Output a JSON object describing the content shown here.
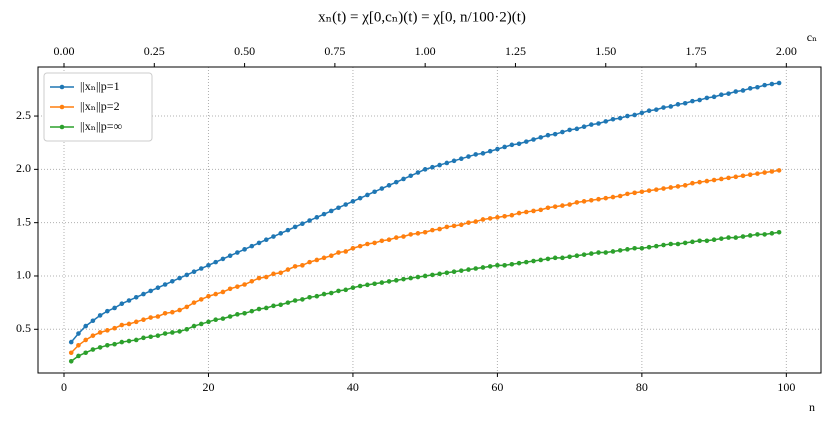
{
  "chart_data": {
    "type": "line",
    "title": "xₙ(t) = χ[0,cₙ)(t) = χ[0, n/100·2)(t)",
    "xlabel": "n",
    "x2label": "cₙ",
    "x": [
      1,
      2,
      3,
      4,
      5,
      6,
      7,
      8,
      9,
      10,
      11,
      12,
      13,
      14,
      15,
      16,
      17,
      18,
      19,
      20,
      21,
      22,
      23,
      24,
      25,
      26,
      27,
      28,
      29,
      30,
      31,
      32,
      33,
      34,
      35,
      36,
      37,
      38,
      39,
      40,
      41,
      42,
      43,
      44,
      45,
      46,
      47,
      48,
      49,
      50,
      51,
      52,
      53,
      54,
      55,
      56,
      57,
      58,
      59,
      60,
      61,
      62,
      63,
      64,
      65,
      66,
      67,
      68,
      69,
      70,
      71,
      72,
      73,
      74,
      75,
      76,
      77,
      78,
      79,
      80,
      81,
      82,
      83,
      84,
      85,
      86,
      87,
      88,
      89,
      90,
      91,
      92,
      93,
      94,
      95,
      96,
      97,
      98,
      99
    ],
    "series": [
      {
        "name": "||xₙ||p=1",
        "color": "#1f77b4",
        "values": [
          0.38,
          0.46,
          0.53,
          0.58,
          0.63,
          0.67,
          0.7,
          0.74,
          0.77,
          0.8,
          0.83,
          0.86,
          0.89,
          0.92,
          0.95,
          0.98,
          1.01,
          1.04,
          1.07,
          1.1,
          1.13,
          1.16,
          1.19,
          1.22,
          1.25,
          1.28,
          1.31,
          1.34,
          1.37,
          1.4,
          1.43,
          1.46,
          1.49,
          1.52,
          1.55,
          1.58,
          1.61,
          1.64,
          1.67,
          1.7,
          1.73,
          1.76,
          1.79,
          1.82,
          1.85,
          1.88,
          1.91,
          1.94,
          1.97,
          2.0,
          2.02,
          2.04,
          2.06,
          2.08,
          2.1,
          2.12,
          2.14,
          2.15,
          2.17,
          2.19,
          2.21,
          2.23,
          2.24,
          2.26,
          2.28,
          2.3,
          2.32,
          2.33,
          2.35,
          2.37,
          2.38,
          2.4,
          2.42,
          2.43,
          2.45,
          2.47,
          2.48,
          2.5,
          2.51,
          2.53,
          2.55,
          2.56,
          2.58,
          2.59,
          2.61,
          2.62,
          2.64,
          2.65,
          2.67,
          2.68,
          2.7,
          2.71,
          2.73,
          2.74,
          2.76,
          2.77,
          2.79,
          2.8,
          2.81
        ]
      },
      {
        "name": "||xₙ||p=2",
        "color": "#ff7f0e",
        "values": [
          0.28,
          0.35,
          0.4,
          0.44,
          0.47,
          0.49,
          0.51,
          0.54,
          0.55,
          0.57,
          0.59,
          0.61,
          0.62,
          0.65,
          0.66,
          0.68,
          0.71,
          0.75,
          0.78,
          0.81,
          0.83,
          0.85,
          0.88,
          0.9,
          0.92,
          0.95,
          0.98,
          0.99,
          1.02,
          1.03,
          1.06,
          1.09,
          1.1,
          1.13,
          1.15,
          1.17,
          1.19,
          1.22,
          1.23,
          1.26,
          1.28,
          1.3,
          1.31,
          1.33,
          1.34,
          1.36,
          1.37,
          1.39,
          1.4,
          1.41,
          1.43,
          1.44,
          1.46,
          1.47,
          1.48,
          1.5,
          1.51,
          1.53,
          1.54,
          1.55,
          1.56,
          1.57,
          1.59,
          1.6,
          1.61,
          1.62,
          1.64,
          1.65,
          1.66,
          1.67,
          1.69,
          1.7,
          1.71,
          1.72,
          1.73,
          1.74,
          1.75,
          1.77,
          1.78,
          1.79,
          1.8,
          1.81,
          1.82,
          1.83,
          1.84,
          1.85,
          1.87,
          1.88,
          1.89,
          1.9,
          1.91,
          1.92,
          1.93,
          1.94,
          1.95,
          1.96,
          1.97,
          1.98,
          1.99
        ]
      },
      {
        "name": "||xₙ||p=∞",
        "color": "#2ca02c",
        "values": [
          0.2,
          0.25,
          0.28,
          0.31,
          0.33,
          0.35,
          0.36,
          0.38,
          0.39,
          0.4,
          0.42,
          0.43,
          0.44,
          0.46,
          0.47,
          0.48,
          0.5,
          0.53,
          0.55,
          0.57,
          0.59,
          0.6,
          0.62,
          0.64,
          0.65,
          0.67,
          0.69,
          0.7,
          0.72,
          0.73,
          0.75,
          0.77,
          0.78,
          0.8,
          0.81,
          0.83,
          0.84,
          0.86,
          0.87,
          0.89,
          0.906,
          0.917,
          0.927,
          0.938,
          0.949,
          0.959,
          0.97,
          0.98,
          0.99,
          1.0,
          1.01,
          1.02,
          1.03,
          1.04,
          1.05,
          1.06,
          1.07,
          1.08,
          1.09,
          1.1,
          1.1,
          1.11,
          1.12,
          1.13,
          1.14,
          1.15,
          1.16,
          1.17,
          1.17,
          1.18,
          1.19,
          1.2,
          1.21,
          1.22,
          1.22,
          1.23,
          1.24,
          1.25,
          1.26,
          1.26,
          1.27,
          1.28,
          1.29,
          1.3,
          1.3,
          1.31,
          1.32,
          1.33,
          1.33,
          1.34,
          1.35,
          1.36,
          1.36,
          1.37,
          1.38,
          1.39,
          1.39,
          1.4,
          1.41
        ]
      }
    ],
    "xlim": [
      -3.6,
      104.8
    ],
    "xticks": [
      0,
      20,
      40,
      60,
      80,
      100
    ],
    "x2lim": [
      -0.072,
      2.096
    ],
    "x2ticks": [
      {
        "value": 0,
        "label": "0.00"
      },
      {
        "value": 0.25,
        "label": "0.25"
      },
      {
        "value": 0.5,
        "label": "0.50"
      },
      {
        "value": 0.75,
        "label": "0.75"
      },
      {
        "value": 1,
        "label": "1.00"
      },
      {
        "value": 1.25,
        "label": "1.25"
      },
      {
        "value": 1.5,
        "label": "1.50"
      },
      {
        "value": 1.75,
        "label": "1.75"
      },
      {
        "value": 2,
        "label": "2.00"
      }
    ],
    "ylim": [
      0.09,
      2.96
    ],
    "yticks": [
      0.5,
      {
        "value": 1,
        "label": "1.0"
      },
      1.5,
      {
        "value": 2,
        "label": "2.0"
      },
      2.5
    ],
    "grid": true,
    "legend": "upper left"
  }
}
